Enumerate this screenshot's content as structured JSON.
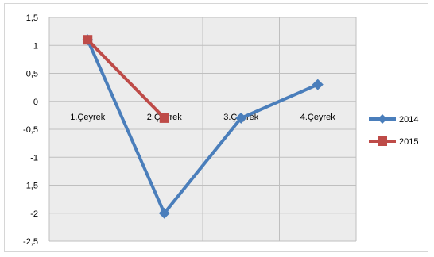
{
  "chart_data": {
    "type": "line",
    "categories": [
      "1.Çeyrek",
      "2.Çeyrek",
      "3.Çeyrek",
      "4.Çeyrek"
    ],
    "series": [
      {
        "name": "2014",
        "values": [
          1.1,
          -2.0,
          -0.3,
          0.3
        ],
        "color": "#4a7ebb",
        "marker": "diamond"
      },
      {
        "name": "2015",
        "values": [
          1.1,
          -0.3,
          null,
          null
        ],
        "color": "#be4b48",
        "marker": "square"
      }
    ],
    "ylim": [
      -2.5,
      1.5
    ],
    "yticks": [
      "1,5",
      "1",
      "0,5",
      "0",
      "-0,5",
      "-1",
      "-1,5",
      "-2",
      "-2,5"
    ],
    "ytick_values": [
      1.5,
      1,
      0.5,
      0,
      -0.5,
      -1,
      -1.5,
      -2,
      -2.5
    ],
    "grid": true,
    "legend_position": "right",
    "plot_background": "#ececec",
    "title": "",
    "xlabel": "",
    "ylabel": ""
  }
}
